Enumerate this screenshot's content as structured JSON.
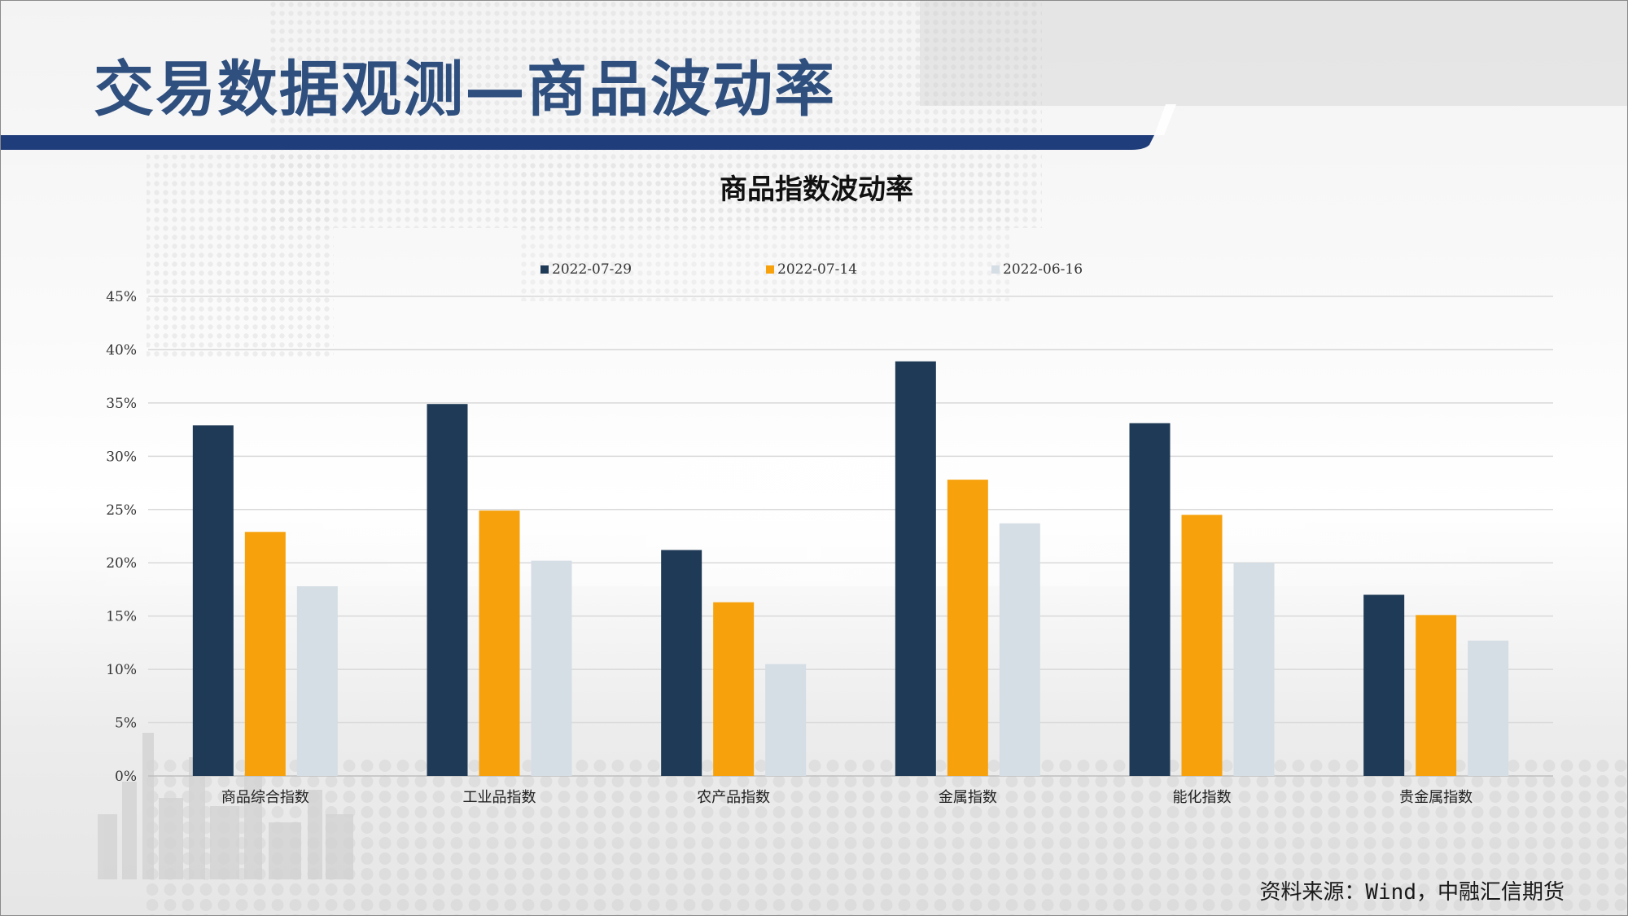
{
  "slide": {
    "title": "交易数据观测—商品波动率",
    "source": "资料来源：Wind，中融汇信期货"
  },
  "colors": {
    "brand": "#1f3d7a",
    "title": "#2f4f7e",
    "series": [
      "#1f3a56",
      "#f7a20c",
      "#d5dde5"
    ]
  },
  "chart_data": {
    "type": "bar",
    "title": "商品指数波动率",
    "categories": [
      "商品综合指数",
      "工业品指数",
      "农产品指数",
      "金属指数",
      "能化指数",
      "贵金属指数"
    ],
    "series": [
      {
        "name": "2022-07-29",
        "values": [
          0.329,
          0.349,
          0.212,
          0.389,
          0.331,
          0.17
        ]
      },
      {
        "name": "2022-07-14",
        "values": [
          0.229,
          0.249,
          0.163,
          0.278,
          0.245,
          0.151
        ]
      },
      {
        "name": "2022-06-16",
        "values": [
          0.178,
          0.202,
          0.105,
          0.237,
          0.2,
          0.127
        ]
      }
    ],
    "ylim": [
      0,
      0.45
    ],
    "yticks": [
      "0%",
      "5%",
      "10%",
      "15%",
      "20%",
      "25%",
      "30%",
      "35%",
      "40%",
      "45%"
    ],
    "grid": true,
    "legend_position": "top",
    "xlabel": "",
    "ylabel": ""
  }
}
